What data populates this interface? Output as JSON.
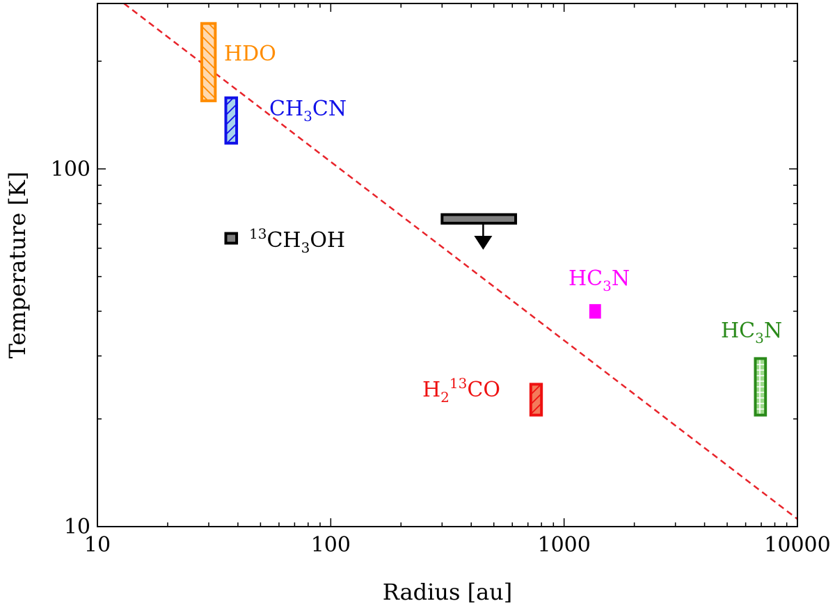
{
  "chart_data": {
    "type": "scatter",
    "title": "",
    "xlabel": "Radius [au]",
    "ylabel": "Temperature [K]",
    "xscale": "log",
    "yscale": "log",
    "xlim": [
      10,
      10000
    ],
    "ylim": [
      10,
      290
    ],
    "x_ticks": [
      {
        "value": 10,
        "label": "10"
      },
      {
        "value": 100,
        "label": "100"
      },
      {
        "value": 1000,
        "label": "1000"
      },
      {
        "value": 10000,
        "label": "10000"
      }
    ],
    "y_ticks": [
      {
        "value": 10,
        "label": "10"
      },
      {
        "value": 100,
        "label": "100"
      }
    ],
    "grid": false,
    "legend": "none",
    "line": {
      "name": "",
      "style": "dashed",
      "color": "#e8232a",
      "points": [
        {
          "x": 13,
          "y": 290
        },
        {
          "x": 10000,
          "y": 10.5
        }
      ]
    },
    "boxes": [
      {
        "id": "hdo",
        "x_range": [
          28,
          32
        ],
        "y_range": [
          155,
          255
        ],
        "edge": "#ff8c00",
        "fill": "#ffd9b0",
        "hatch": "backslash",
        "label": {
          "text": "HDO",
          "color": "#ff8c00"
        }
      },
      {
        "id": "ch3cn",
        "x_range": [
          35.5,
          39.5
        ],
        "y_range": [
          118,
          158
        ],
        "edge": "#1010e8",
        "fill": "#a8d4ec",
        "hatch": "slash",
        "label": {
          "main": "CH",
          "sub": "3",
          "rest": "CN",
          "color": "#1010e8"
        }
      },
      {
        "id": "13ch3oh",
        "x_range": [
          35.5,
          39.5
        ],
        "y_range": [
          62,
          66
        ],
        "edge": "#000000",
        "fill": "#7f7f7f",
        "hatch": "none",
        "label": {
          "sup": "13",
          "main": "CH",
          "sub": "3",
          "rest": "OH",
          "color": "#000000"
        }
      },
      {
        "id": "upper-limit",
        "x_range": [
          300,
          620
        ],
        "y_range": [
          70.5,
          74.5
        ],
        "edge": "#000000",
        "fill": "#7f7f7f",
        "hatch": "none",
        "arrow": {
          "x": 450,
          "from_y": 70.5,
          "to_y": 60.5
        }
      },
      {
        "id": "h213co",
        "x_range": [
          720,
          800
        ],
        "y_range": [
          20.5,
          25
        ],
        "edge": "#ee1111",
        "fill": "#f47a5a",
        "hatch": "slash",
        "label": {
          "main": "H",
          "sub": "2",
          "sup": "13",
          "rest": "CO",
          "color": "#ee1111"
        }
      },
      {
        "id": "hc3n-magenta",
        "x_range": [
          1300,
          1420
        ],
        "y_range": [
          38.5,
          41.5
        ],
        "edge": "#ff00ff",
        "fill": "#ff00ff",
        "hatch": "none",
        "label": {
          "main": "HC",
          "sub": "3",
          "rest": "N",
          "color": "#ff00ff"
        }
      },
      {
        "id": "hc3n-green",
        "x_range": [
          6600,
          7300
        ],
        "y_range": [
          20.5,
          29.5
        ],
        "edge": "#2a8a1a",
        "fill": "#9edc8c",
        "hatch": "grid",
        "label": {
          "main": "HC",
          "sub": "3",
          "rest": "N",
          "color": "#2a8a1a"
        }
      }
    ]
  }
}
